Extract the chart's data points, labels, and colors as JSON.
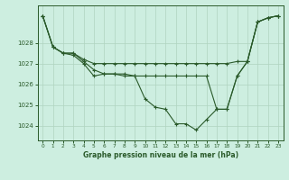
{
  "title": "Graphe pression niveau de la mer (hPa)",
  "bg_color": "#cdeee0",
  "grid_color": "#b0d4c0",
  "line_color": "#2a5a2a",
  "xlim": [
    -0.5,
    23.5
  ],
  "ylim": [
    1023.3,
    1029.8
  ],
  "yticks": [
    1024,
    1025,
    1026,
    1027,
    1028
  ],
  "xticks": [
    0,
    1,
    2,
    3,
    4,
    5,
    6,
    7,
    8,
    9,
    10,
    11,
    12,
    13,
    14,
    15,
    16,
    17,
    18,
    19,
    20,
    21,
    22,
    23
  ],
  "series": [
    [
      1029.3,
      1027.8,
      1027.5,
      1027.4,
      1027.0,
      1026.4,
      1026.5,
      1026.5,
      1026.4,
      1026.4,
      1025.3,
      1024.9,
      1024.8,
      1024.1,
      1024.1,
      1023.8,
      1024.3,
      1024.8,
      1024.8,
      1026.4,
      1027.1,
      1029.0,
      1029.2,
      1029.3
    ],
    [
      1029.3,
      1027.8,
      1027.5,
      1027.5,
      1027.1,
      1026.7,
      1026.5,
      1026.5,
      1026.5,
      1026.4,
      1026.4,
      1026.4,
      1026.4,
      1026.4,
      1026.4,
      1026.4,
      1026.4,
      1024.8,
      1024.8,
      1026.4,
      1027.1,
      1029.0,
      1029.2,
      1029.3
    ],
    [
      1029.3,
      1027.8,
      1027.5,
      1027.5,
      1027.2,
      1027.0,
      1027.0,
      1027.0,
      1027.0,
      1027.0,
      1027.0,
      1027.0,
      1027.0,
      1027.0,
      1027.0,
      1027.0,
      1027.0,
      1027.0,
      1027.0,
      1027.1,
      1027.1,
      1029.0,
      1029.2,
      1029.3
    ]
  ]
}
